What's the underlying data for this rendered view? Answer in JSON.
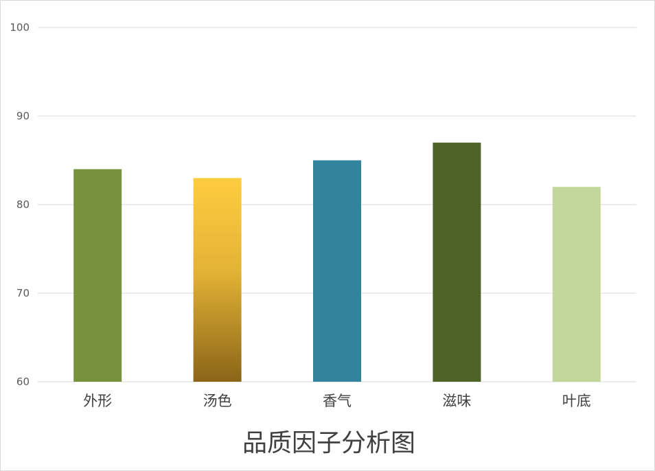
{
  "chart_data": {
    "type": "bar",
    "title": "品质因子分析图",
    "xlabel": "",
    "ylabel": "",
    "categories": [
      "外形",
      "汤色",
      "香气",
      "滋味",
      "叶底"
    ],
    "values": [
      84,
      83,
      85,
      87,
      82
    ],
    "ylim": [
      60,
      100
    ],
    "yticks": [
      60,
      70,
      80,
      90,
      100
    ],
    "grid": true,
    "legend": "none",
    "bar_colors": [
      "#76923c",
      "gradient",
      "#31849b",
      "#4f6228",
      "#c3d69b"
    ],
    "gradient_stops": [
      "#ffcc3f",
      "#e4b336",
      "#8b6518"
    ]
  }
}
